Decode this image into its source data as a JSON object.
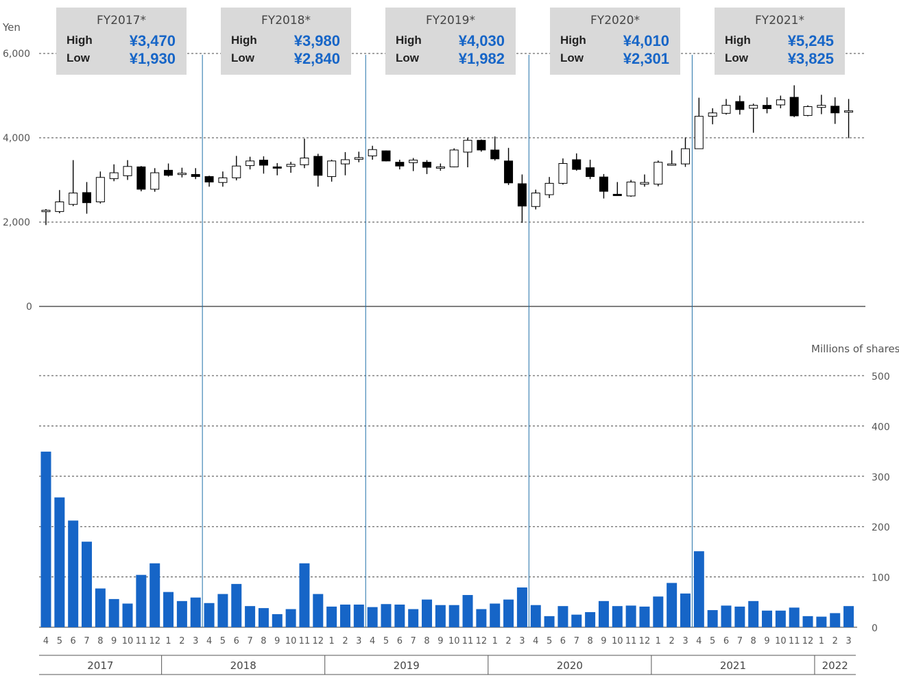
{
  "fiscal_years": [
    {
      "label": "FY2017*",
      "high_label": "High",
      "high": "¥3,470",
      "low_label": "Low",
      "low": "¥1,930"
    },
    {
      "label": "FY2018*",
      "high_label": "High",
      "high": "¥3,980",
      "low_label": "Low",
      "low": "¥2,840"
    },
    {
      "label": "FY2019*",
      "high_label": "High",
      "high": "¥4,030",
      "low_label": "Low",
      "low": "¥1,982"
    },
    {
      "label": "FY2020*",
      "high_label": "High",
      "high": "¥4,010",
      "low_label": "Low",
      "low": "¥2,301"
    },
    {
      "label": "FY2021*",
      "high_label": "High",
      "high": "¥5,245",
      "low_label": "Low",
      "low": "¥3,825"
    }
  ],
  "chart_data": {
    "type": "candlestick",
    "colors": {
      "bar": "#1665c7",
      "divider": "#1f6fa8",
      "candle_down": "#000000",
      "candle_up": "#ffffff"
    },
    "price_axis": {
      "unit_label": "Yen",
      "ticks": [
        "6,000",
        "4,000",
        "2,000",
        "0"
      ],
      "tick_values": [
        6000,
        4000,
        2000,
        0
      ],
      "range": [
        0,
        6000
      ]
    },
    "volume_axis": {
      "unit_label": "Millions of shares",
      "ticks": [
        "500",
        "400",
        "300",
        "200",
        "100",
        "0"
      ],
      "tick_values": [
        500,
        400,
        300,
        200,
        100,
        0
      ],
      "range": [
        0,
        500
      ]
    },
    "months": [
      "4",
      "5",
      "6",
      "7",
      "8",
      "9",
      "10",
      "11",
      "12",
      "1",
      "2",
      "3",
      "4",
      "5",
      "6",
      "7",
      "8",
      "9",
      "10",
      "11",
      "12",
      "1",
      "2",
      "3",
      "4",
      "5",
      "6",
      "7",
      "8",
      "9",
      "10",
      "11",
      "12",
      "1",
      "2",
      "3",
      "4",
      "5",
      "6",
      "7",
      "8",
      "9",
      "10",
      "11",
      "12",
      "1",
      "2",
      "3",
      "4",
      "5",
      "6",
      "7",
      "8",
      "9",
      "10",
      "11",
      "12",
      "1",
      "2",
      "3"
    ],
    "calendar_years": [
      {
        "label": "2017",
        "months": 9
      },
      {
        "label": "2018",
        "months": 12
      },
      {
        "label": "2019",
        "months": 12
      },
      {
        "label": "2020",
        "months": 12
      },
      {
        "label": "2021",
        "months": 12
      },
      {
        "label": "2022",
        "months": 3
      }
    ],
    "candles": [
      [
        2280,
        2280,
        2310,
        1930
      ],
      [
        2250,
        2480,
        2760,
        2210
      ],
      [
        2420,
        2690,
        3470,
        2380
      ],
      [
        2700,
        2460,
        2950,
        2200
      ],
      [
        2480,
        3060,
        3200,
        2440
      ],
      [
        3030,
        3170,
        3370,
        2970
      ],
      [
        3100,
        3320,
        3470,
        3000
      ],
      [
        3310,
        2780,
        3330,
        2730
      ],
      [
        2780,
        3170,
        3280,
        2720
      ],
      [
        3230,
        3110,
        3390,
        3080
      ],
      [
        3150,
        3160,
        3290,
        3060
      ],
      [
        3130,
        3080,
        3280,
        3020
      ],
      [
        3080,
        2950,
        3100,
        2840
      ],
      [
        2940,
        3050,
        3200,
        2840
      ],
      [
        3050,
        3330,
        3570,
        2990
      ],
      [
        3340,
        3450,
        3550,
        3250
      ],
      [
        3470,
        3350,
        3560,
        3150
      ],
      [
        3310,
        3300,
        3400,
        3110
      ],
      [
        3320,
        3370,
        3430,
        3170
      ],
      [
        3360,
        3520,
        3980,
        3280
      ],
      [
        3560,
        3110,
        3620,
        2840
      ],
      [
        3080,
        3450,
        3480,
        2960
      ],
      [
        3380,
        3480,
        3660,
        3110
      ],
      [
        3490,
        3530,
        3670,
        3420
      ],
      [
        3570,
        3720,
        3810,
        3480
      ],
      [
        3690,
        3450,
        3700,
        3440
      ],
      [
        3420,
        3330,
        3480,
        3250
      ],
      [
        3410,
        3470,
        3520,
        3210
      ],
      [
        3420,
        3300,
        3470,
        3140
      ],
      [
        3290,
        3310,
        3390,
        3220
      ],
      [
        3310,
        3710,
        3750,
        3300
      ],
      [
        3660,
        3940,
        4000,
        3300
      ],
      [
        3940,
        3710,
        3960,
        3670
      ],
      [
        3710,
        3500,
        4030,
        3460
      ],
      [
        3450,
        2930,
        3760,
        2880
      ],
      [
        2910,
        2380,
        3130,
        1982
      ],
      [
        2370,
        2690,
        2770,
        2301
      ],
      [
        2650,
        2920,
        3070,
        2570
      ],
      [
        2920,
        3390,
        3510,
        2890
      ],
      [
        3480,
        3250,
        3630,
        3220
      ],
      [
        3290,
        3080,
        3480,
        3020
      ],
      [
        3070,
        2730,
        3140,
        2560
      ],
      [
        2660,
        2640,
        2950,
        2630
      ],
      [
        2620,
        2950,
        3000,
        2600
      ],
      [
        2900,
        2940,
        3130,
        2840
      ],
      [
        2900,
        3420,
        3460,
        2850
      ],
      [
        3360,
        3380,
        3700,
        3340
      ],
      [
        3380,
        3740,
        4010,
        3310
      ],
      [
        3740,
        4510,
        4950,
        3825
      ],
      [
        4510,
        4590,
        4700,
        4320
      ],
      [
        4580,
        4770,
        4920,
        4550
      ],
      [
        4860,
        4670,
        5000,
        4550
      ],
      [
        4700,
        4770,
        4810,
        4120
      ],
      [
        4770,
        4690,
        4960,
        4580
      ],
      [
        4780,
        4900,
        5000,
        4700
      ],
      [
        4960,
        4520,
        5245,
        4490
      ],
      [
        4530,
        4740,
        4770,
        4510
      ],
      [
        4720,
        4770,
        5020,
        4560
      ],
      [
        4750,
        4590,
        4960,
        4330
      ],
      [
        4630,
        4640,
        4920,
        3990
      ]
    ],
    "volume": [
      349,
      258,
      212,
      170,
      77,
      56,
      47,
      104,
      127,
      70,
      52,
      59,
      48,
      66,
      86,
      42,
      38,
      26,
      36,
      127,
      66,
      41,
      45,
      45,
      40,
      46,
      45,
      36,
      55,
      44,
      44,
      64,
      36,
      47,
      55,
      79,
      44,
      22,
      42,
      25,
      30,
      52,
      42,
      43,
      41,
      61,
      88,
      67,
      151,
      34,
      43,
      41,
      52,
      33,
      33,
      39,
      22,
      21,
      28,
      42
    ]
  }
}
